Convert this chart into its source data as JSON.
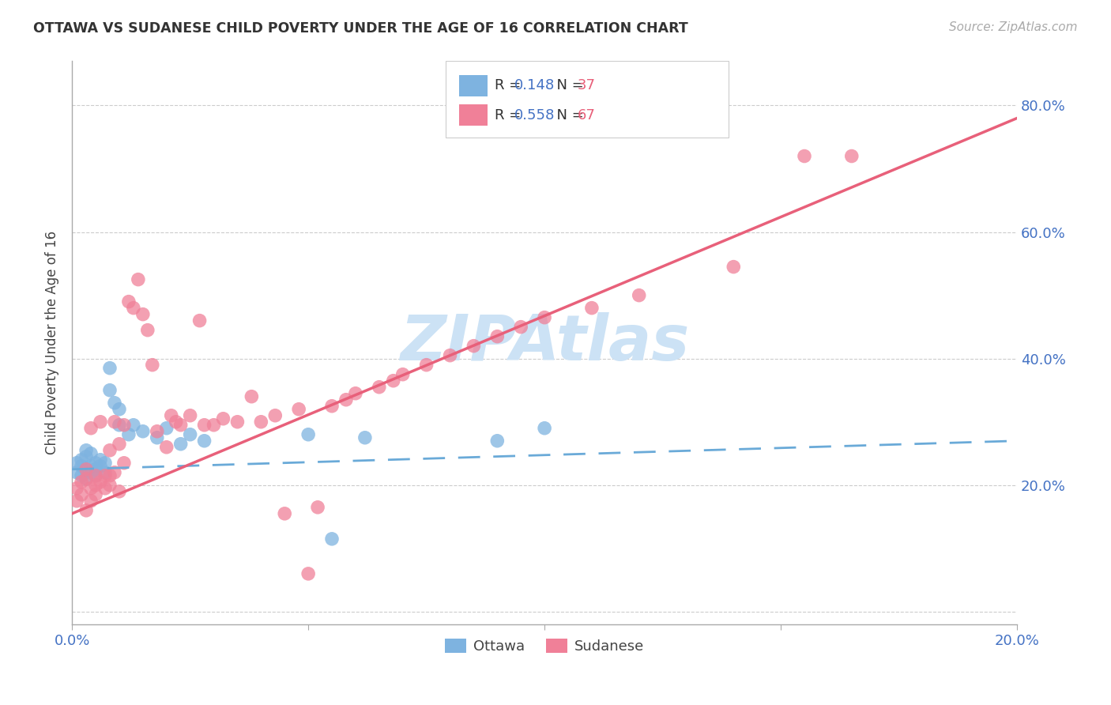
{
  "title": "OTTAWA VS SUDANESE CHILD POVERTY UNDER THE AGE OF 16 CORRELATION CHART",
  "source": "Source: ZipAtlas.com",
  "ylabel": "Child Poverty Under the Age of 16",
  "xlim": [
    0.0,
    0.2
  ],
  "ylim": [
    -0.02,
    0.87
  ],
  "yticks": [
    0.0,
    0.2,
    0.4,
    0.6,
    0.8
  ],
  "xticks": [
    0.0,
    0.05,
    0.1,
    0.15,
    0.2
  ],
  "ytick_labels_right": [
    "",
    "20.0%",
    "40.0%",
    "60.0%",
    "80.0%"
  ],
  "xtick_labels": [
    "0.0%",
    "",
    "",
    "",
    "20.0%"
  ],
  "ottawa_color": "#7eb3e0",
  "sudanese_color": "#f08098",
  "trend_ottawa_color": "#6aaad8",
  "trend_sudanese_color": "#e8607a",
  "watermark_color": "#cce2f5",
  "legend_R_ottawa": "R = 0.148",
  "legend_N_ottawa": "N = 37",
  "legend_R_sudanese": "R = 0.558",
  "legend_N_sudanese": "N = 67",
  "ottawa_trend_x0": 0.0,
  "ottawa_trend_y0": 0.225,
  "ottawa_trend_x1": 0.2,
  "ottawa_trend_y1": 0.27,
  "sudanese_trend_x0": 0.0,
  "sudanese_trend_y0": 0.155,
  "sudanese_trend_x1": 0.2,
  "sudanese_trend_y1": 0.78,
  "ottawa_scatter_x": [
    0.001,
    0.001,
    0.002,
    0.002,
    0.002,
    0.003,
    0.003,
    0.003,
    0.003,
    0.004,
    0.004,
    0.004,
    0.005,
    0.005,
    0.005,
    0.006,
    0.006,
    0.007,
    0.007,
    0.008,
    0.008,
    0.009,
    0.01,
    0.01,
    0.012,
    0.013,
    0.015,
    0.018,
    0.02,
    0.023,
    0.025,
    0.028,
    0.05,
    0.055,
    0.062,
    0.09,
    0.1
  ],
  "ottawa_scatter_y": [
    0.235,
    0.22,
    0.23,
    0.215,
    0.24,
    0.225,
    0.245,
    0.21,
    0.255,
    0.23,
    0.22,
    0.25,
    0.225,
    0.235,
    0.215,
    0.24,
    0.23,
    0.22,
    0.235,
    0.385,
    0.35,
    0.33,
    0.32,
    0.295,
    0.28,
    0.295,
    0.285,
    0.275,
    0.29,
    0.265,
    0.28,
    0.27,
    0.28,
    0.115,
    0.275,
    0.27,
    0.29
  ],
  "sudanese_scatter_x": [
    0.001,
    0.001,
    0.002,
    0.002,
    0.003,
    0.003,
    0.003,
    0.004,
    0.004,
    0.004,
    0.005,
    0.005,
    0.005,
    0.006,
    0.006,
    0.007,
    0.007,
    0.008,
    0.008,
    0.008,
    0.009,
    0.009,
    0.01,
    0.01,
    0.011,
    0.011,
    0.012,
    0.013,
    0.014,
    0.015,
    0.016,
    0.017,
    0.018,
    0.02,
    0.021,
    0.022,
    0.023,
    0.025,
    0.027,
    0.028,
    0.03,
    0.032,
    0.035,
    0.038,
    0.04,
    0.043,
    0.045,
    0.048,
    0.05,
    0.052,
    0.055,
    0.058,
    0.06,
    0.065,
    0.068,
    0.07,
    0.075,
    0.08,
    0.085,
    0.09,
    0.095,
    0.1,
    0.11,
    0.12,
    0.14,
    0.155,
    0.165
  ],
  "sudanese_scatter_y": [
    0.175,
    0.195,
    0.205,
    0.185,
    0.16,
    0.21,
    0.225,
    0.195,
    0.29,
    0.175,
    0.215,
    0.185,
    0.2,
    0.205,
    0.3,
    0.215,
    0.195,
    0.215,
    0.255,
    0.2,
    0.22,
    0.3,
    0.19,
    0.265,
    0.235,
    0.295,
    0.49,
    0.48,
    0.525,
    0.47,
    0.445,
    0.39,
    0.285,
    0.26,
    0.31,
    0.3,
    0.295,
    0.31,
    0.46,
    0.295,
    0.295,
    0.305,
    0.3,
    0.34,
    0.3,
    0.31,
    0.155,
    0.32,
    0.06,
    0.165,
    0.325,
    0.335,
    0.345,
    0.355,
    0.365,
    0.375,
    0.39,
    0.405,
    0.42,
    0.435,
    0.45,
    0.465,
    0.48,
    0.5,
    0.545,
    0.72,
    0.72
  ]
}
